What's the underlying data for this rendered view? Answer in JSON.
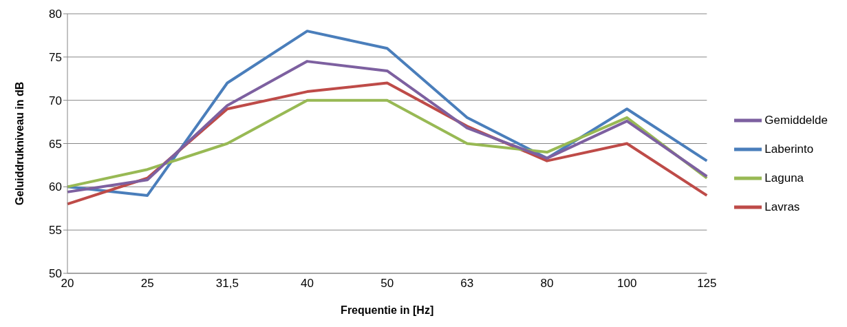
{
  "chart_data": {
    "type": "line",
    "xlabel": "Frequentie in [Hz]",
    "ylabel": "Geluiddrukniveau in dB",
    "categories": [
      "20",
      "25",
      "31,5",
      "40",
      "50",
      "63",
      "80",
      "100",
      "125"
    ],
    "series": [
      {
        "name": "Laberinto",
        "color": "#4a7ebb",
        "values": [
          60,
          59,
          72,
          78,
          76,
          68,
          63.3,
          69,
          63
        ]
      },
      {
        "name": "Lavras",
        "color": "#be4b48",
        "values": [
          58,
          61,
          69,
          71,
          72,
          67,
          63,
          65,
          59
        ]
      },
      {
        "name": "Laguna",
        "color": "#98b954",
        "values": [
          60,
          62,
          65,
          70,
          70,
          65,
          64,
          68,
          61
        ]
      },
      {
        "name": "Gemiddelde",
        "color": "#7d60a0",
        "values": [
          59.4,
          60.8,
          69.4,
          74.5,
          73.4,
          66.8,
          63.3,
          67.6,
          61.2
        ]
      }
    ],
    "ylim": [
      50,
      80
    ],
    "yticks": [
      50,
      55,
      60,
      65,
      70,
      75,
      80
    ],
    "grid": "y",
    "legend": "right",
    "marker": "none",
    "line_style": "solid"
  }
}
